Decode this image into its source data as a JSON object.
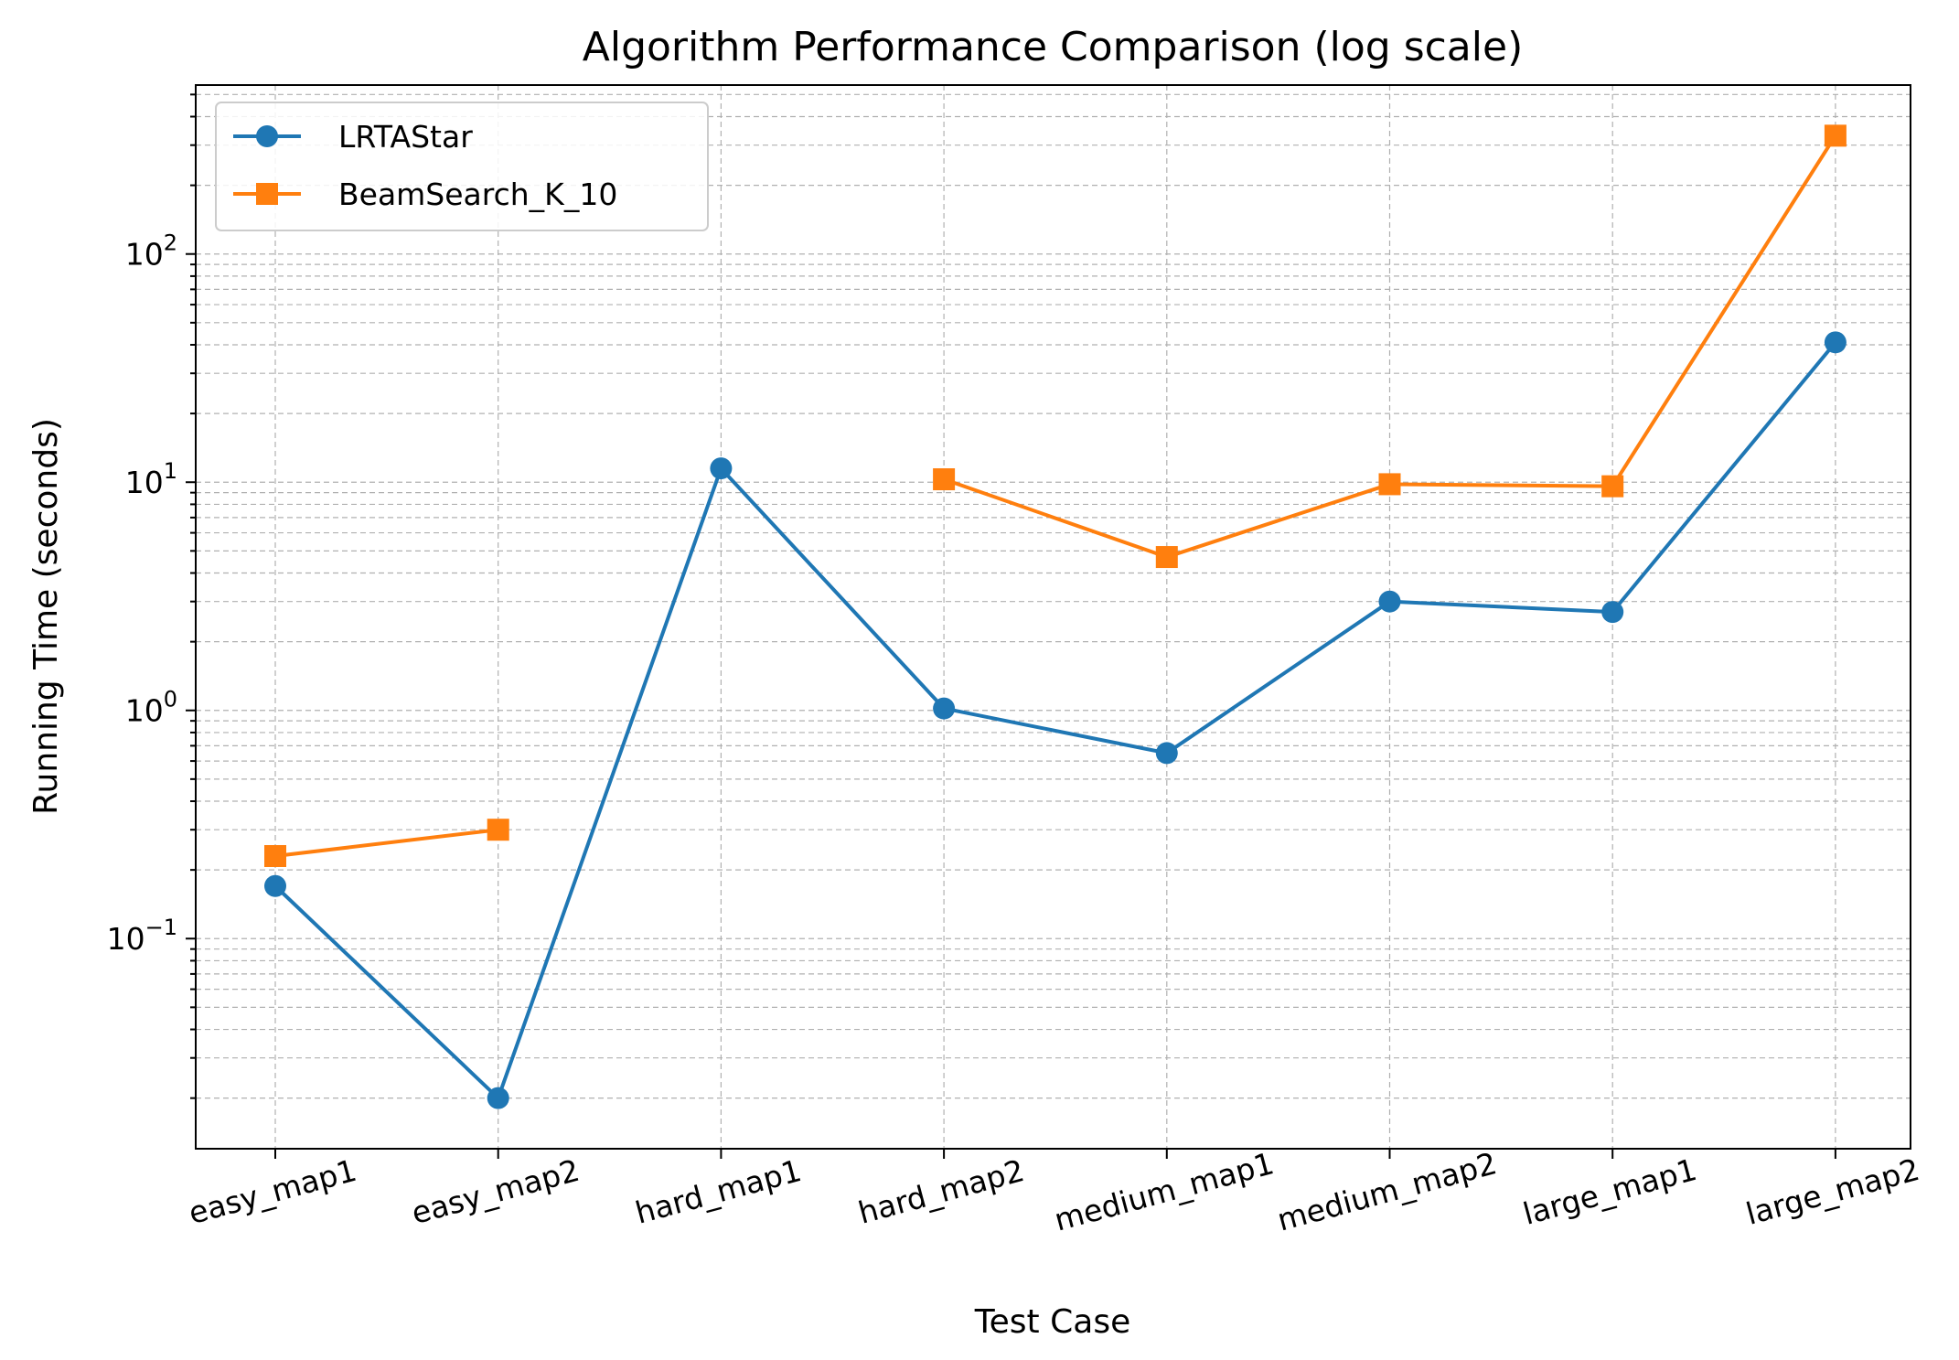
{
  "chart_data": {
    "type": "line",
    "title": "Algorithm Performance Comparison (log scale)",
    "xlabel": "Test Case",
    "ylabel": "Running Time (seconds)",
    "yscale": "log",
    "ylim": [
      0.012,
      550
    ],
    "grid": true,
    "legend_position": "top-left",
    "categories": [
      "easy_map1",
      "easy_map2",
      "hard_map1",
      "hard_map2",
      "medium_map1",
      "medium_map2",
      "large_map1",
      "large_map2"
    ],
    "y_ticks": [
      {
        "value": 0.1,
        "base": "10",
        "exp": "−1"
      },
      {
        "value": 1,
        "base": "10",
        "exp": "0"
      },
      {
        "value": 10,
        "base": "10",
        "exp": "1"
      },
      {
        "value": 100,
        "base": "10",
        "exp": "2"
      }
    ],
    "series": [
      {
        "name": "LRTAStar",
        "color": "#1f77b4",
        "marker": "circle",
        "values": [
          0.17,
          0.02,
          11.5,
          1.02,
          0.65,
          3.0,
          2.7,
          41
        ]
      },
      {
        "name": "BeamSearch_K_10",
        "color": "#ff7f0e",
        "marker": "square",
        "values": [
          0.23,
          0.3,
          null,
          10.3,
          4.7,
          9.8,
          9.6,
          330
        ]
      }
    ]
  }
}
